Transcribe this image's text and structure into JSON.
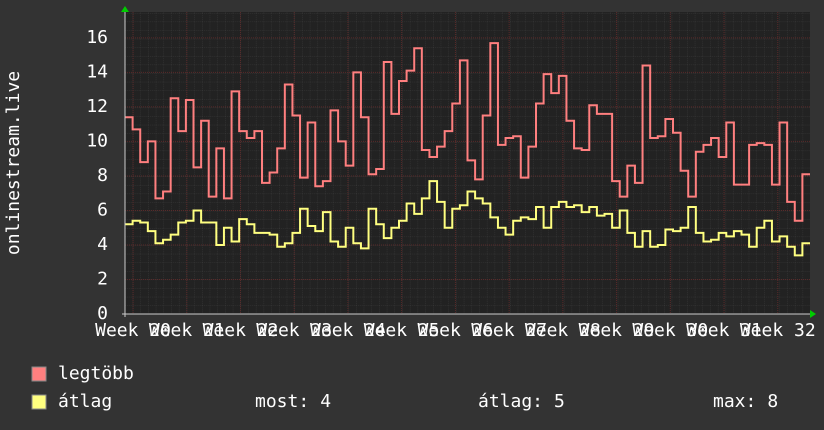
{
  "chart_data": {
    "type": "step-line",
    "y_axis_label": "onlinestream.live",
    "ylim": [
      0,
      17.5
    ],
    "yticks": [
      0,
      2,
      4,
      6,
      8,
      10,
      12,
      14,
      16
    ],
    "xlim": [
      19.85,
      32.6
    ],
    "xticks": [
      {
        "value": 20,
        "label": "Week 20"
      },
      {
        "value": 21,
        "label": "Week 21"
      },
      {
        "value": 22,
        "label": "Week 22"
      },
      {
        "value": 23,
        "label": "Week 23"
      },
      {
        "value": 24,
        "label": "Week 24"
      },
      {
        "value": 25,
        "label": "Week 25"
      },
      {
        "value": 26,
        "label": "Week 26"
      },
      {
        "value": 27,
        "label": "Week 27"
      },
      {
        "value": 28,
        "label": "Week 28"
      },
      {
        "value": 29,
        "label": "Week 29"
      },
      {
        "value": 30,
        "label": "Week 30"
      },
      {
        "value": 31,
        "label": "Week 31"
      },
      {
        "value": 32,
        "label": "Week 32"
      }
    ],
    "grid": true,
    "series": [
      {
        "name": "legtöbb",
        "color": "#ff7f7f",
        "values": [
          11.4,
          10.7,
          8.8,
          10,
          6.7,
          7.1,
          12.5,
          10.6,
          12.4,
          8.5,
          11.2,
          6.8,
          9.6,
          6.7,
          12.9,
          10.6,
          10.2,
          10.6,
          7.6,
          8.2,
          9.6,
          13.3,
          11.5,
          7.9,
          11.1,
          7.4,
          7.7,
          11.8,
          10,
          8.6,
          14,
          11.4,
          8.1,
          8.4,
          14.6,
          11.6,
          13.5,
          14.1,
          15.4,
          9.5,
          9.1,
          9.7,
          10.6,
          12.2,
          14.7,
          8.9,
          7.8,
          11.5,
          15.7,
          9.8,
          10.2,
          10.3,
          7.9,
          9.7,
          12.2,
          13.9,
          12.8,
          13.8,
          11.2,
          9.6,
          9.5,
          12.1,
          11.6,
          11.6,
          7.7,
          6.8,
          8.6,
          7.6,
          14.4,
          10.2,
          10.3,
          11.3,
          10.5,
          8.3,
          6.8,
          9.4,
          9.8,
          10.2,
          9.1,
          11.1,
          7.5,
          7.5,
          9.8,
          9.9,
          9.8,
          7.5,
          11.1,
          6.5,
          5.4,
          8.1
        ]
      },
      {
        "name": "átlag",
        "color": "#ffff80",
        "values": [
          5.2,
          5.4,
          5.3,
          4.8,
          4.1,
          4.3,
          4.6,
          5.3,
          5.4,
          6.0,
          5.3,
          5.3,
          4.0,
          5.0,
          4.2,
          5.5,
          5.2,
          4.7,
          4.7,
          4.6,
          3.9,
          4.1,
          4.7,
          6.1,
          5.1,
          4.8,
          5.9,
          4.2,
          3.9,
          5.0,
          4.1,
          3.8,
          6.1,
          5.2,
          4.4,
          5.0,
          5.4,
          6.4,
          5.8,
          6.7,
          7.7,
          6.5,
          5.0,
          6.1,
          6.3,
          7.1,
          6.7,
          6.4,
          5.6,
          5.0,
          4.6,
          5.4,
          5.6,
          5.5,
          6.2,
          5.0,
          6.2,
          6.5,
          6.2,
          6.3,
          5.9,
          6.2,
          5.7,
          5.8,
          5.0,
          6.0,
          4.7,
          3.9,
          4.8,
          3.9,
          4.0,
          4.9,
          4.8,
          5.0,
          6.2,
          4.7,
          4.2,
          4.3,
          4.7,
          4.5,
          4.8,
          4.6,
          3.9,
          5.0,
          5.4,
          4.2,
          4.5,
          3.9,
          3.4,
          4.1
        ]
      }
    ],
    "stats": [
      {
        "label": "most:",
        "value": 4
      },
      {
        "label": "átlag:",
        "value": 5
      },
      {
        "label": "max:",
        "value": 8
      }
    ]
  }
}
